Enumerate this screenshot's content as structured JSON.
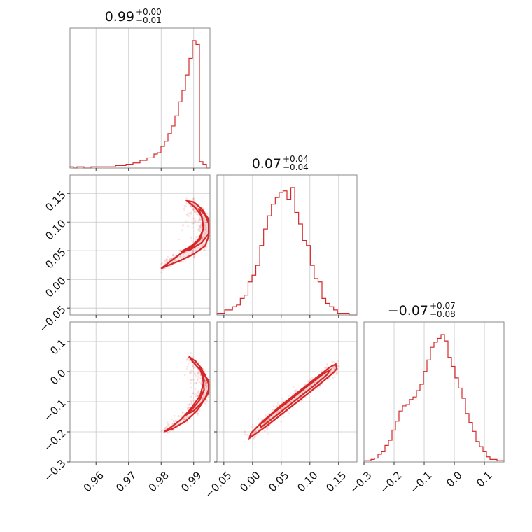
{
  "chart_data": {
    "type": "corner",
    "color": "#d62728",
    "parameters": [
      {
        "range": [
          0.952,
          0.995
        ],
        "ticks": [
          0.96,
          0.97,
          0.98,
          0.99
        ],
        "tick_labels": [
          "0.96",
          "0.97",
          "0.98",
          "0.99"
        ],
        "title": {
          "value": "0.99",
          "upper": "+0.00",
          "lower": "−0.01"
        }
      },
      {
        "range": [
          -0.062,
          0.182
        ],
        "ticks": [
          -0.05,
          0.0,
          0.05,
          0.1,
          0.15
        ],
        "tick_labels": [
          "−0.05",
          "0.00",
          "0.05",
          "0.10",
          "0.15"
        ],
        "title": {
          "value": "0.07",
          "upper": "+0.04",
          "lower": "−0.04"
        }
      },
      {
        "range": [
          -0.3,
          0.165
        ],
        "ticks": [
          -0.3,
          -0.2,
          -0.1,
          0.0,
          0.1
        ],
        "tick_labels": [
          "−0.3",
          "−0.2",
          "−0.1",
          "0.0",
          "0.1"
        ],
        "title": {
          "value": "−0.07",
          "upper": "+0.07",
          "lower": "−0.08"
        }
      }
    ],
    "histograms": [
      {
        "param": 0,
        "bin_range": [
          0.952,
          0.995
        ],
        "counts": [
          1,
          0,
          1,
          1,
          0,
          0,
          1,
          1,
          1,
          1,
          1,
          1,
          1,
          2,
          2,
          2,
          3,
          3,
          4,
          4,
          6,
          6,
          8,
          8,
          11,
          12,
          17,
          21,
          27,
          33,
          41,
          52,
          61,
          73,
          86,
          100,
          97,
          5,
          3,
          0
        ]
      },
      {
        "param": 1,
        "bin_range": [
          -0.062,
          0.182
        ],
        "counts": [
          1,
          1,
          3,
          3,
          5,
          6,
          10,
          12,
          20,
          24,
          30,
          42,
          52,
          60,
          67,
          71,
          74,
          75,
          70,
          77,
          62,
          55,
          45,
          42,
          30,
          22,
          20,
          10,
          7,
          5,
          3,
          1,
          1,
          1,
          0,
          0
        ]
      },
      {
        "param": 2,
        "bin_range": [
          -0.3,
          0.165
        ],
        "counts": [
          1,
          1,
          2,
          3,
          6,
          8,
          13,
          17,
          25,
          32,
          40,
          44,
          45,
          49,
          51,
          56,
          61,
          71,
          80,
          90,
          94,
          97,
          100,
          95,
          82,
          75,
          66,
          58,
          50,
          38,
          31,
          24,
          16,
          12,
          8,
          4,
          2,
          2,
          1,
          1
        ]
      }
    ],
    "pairs": [
      {
        "x_param": 0,
        "y_param": 1,
        "contours": [
          {
            "level": "outer",
            "path": [
              [
                0.9946,
                0.105
              ],
              [
                0.9925,
                0.123
              ],
              [
                0.99,
                0.135
              ],
              [
                0.988,
                0.137
              ],
              [
                0.9905,
                0.125
              ],
              [
                0.9925,
                0.11
              ],
              [
                0.993,
                0.09
              ],
              [
                0.992,
                0.07
              ],
              [
                0.9895,
                0.056
              ],
              [
                0.986,
                0.045
              ],
              [
                0.983,
                0.032
              ],
              [
                0.98,
                0.019
              ],
              [
                0.982,
                0.024
              ],
              [
                0.986,
                0.033
              ],
              [
                0.99,
                0.044
              ],
              [
                0.9935,
                0.058
              ],
              [
                0.9946,
                0.075
              ]
            ]
          },
          {
            "level": "inner",
            "path": [
              [
                0.9946,
                0.098
              ],
              [
                0.9935,
                0.113
              ],
              [
                0.9915,
                0.124
              ],
              [
                0.9925,
                0.108
              ],
              [
                0.993,
                0.088
              ],
              [
                0.9915,
                0.069
              ],
              [
                0.989,
                0.057
              ],
              [
                0.986,
                0.048
              ],
              [
                0.989,
                0.052
              ],
              [
                0.9925,
                0.064
              ],
              [
                0.9946,
                0.08
              ]
            ]
          }
        ]
      },
      {
        "x_param": 0,
        "y_param": 2,
        "contours": [
          {
            "level": "outer",
            "path": [
              [
                0.9946,
                -0.03
              ],
              [
                0.9925,
                0.0
              ],
              [
                0.99,
                0.03
              ],
              [
                0.9885,
                0.05
              ],
              [
                0.9905,
                0.035
              ],
              [
                0.9925,
                0.01
              ],
              [
                0.9932,
                -0.03
              ],
              [
                0.992,
                -0.08
              ],
              [
                0.989,
                -0.125
              ],
              [
                0.986,
                -0.16
              ],
              [
                0.983,
                -0.185
              ],
              [
                0.981,
                -0.199
              ],
              [
                0.9835,
                -0.19
              ],
              [
                0.9875,
                -0.165
              ],
              [
                0.991,
                -0.13
              ],
              [
                0.9935,
                -0.09
              ],
              [
                0.9946,
                -0.06
              ]
            ]
          },
          {
            "level": "inner",
            "path": [
              [
                0.9946,
                -0.04
              ],
              [
                0.9935,
                -0.01
              ],
              [
                0.9918,
                0.015
              ],
              [
                0.9928,
                -0.02
              ],
              [
                0.9932,
                -0.06
              ],
              [
                0.9918,
                -0.095
              ],
              [
                0.9895,
                -0.125
              ],
              [
                0.9875,
                -0.145
              ],
              [
                0.99,
                -0.13
              ],
              [
                0.9928,
                -0.1
              ],
              [
                0.9946,
                -0.07
              ]
            ]
          }
        ]
      },
      {
        "x_param": 1,
        "y_param": 2,
        "contours": [
          {
            "level": "outer",
            "path": [
              [
                -0.005,
                -0.22
              ],
              [
                0.025,
                -0.18
              ],
              [
                0.055,
                -0.135
              ],
              [
                0.085,
                -0.09
              ],
              [
                0.115,
                -0.045
              ],
              [
                0.14,
                -0.005
              ],
              [
                0.147,
                0.01
              ],
              [
                0.145,
                0.025
              ],
              [
                0.135,
                0.015
              ],
              [
                0.108,
                -0.025
              ],
              [
                0.078,
                -0.07
              ],
              [
                0.048,
                -0.115
              ],
              [
                0.018,
                -0.165
              ],
              [
                -0.003,
                -0.205
              ]
            ]
          },
          {
            "level": "inner",
            "path": [
              [
                0.015,
                -0.185
              ],
              [
                0.045,
                -0.14
              ],
              [
                0.075,
                -0.095
              ],
              [
                0.105,
                -0.05
              ],
              [
                0.13,
                -0.01
              ],
              [
                0.135,
                0.005
              ],
              [
                0.125,
                -0.005
              ],
              [
                0.098,
                -0.045
              ],
              [
                0.068,
                -0.09
              ],
              [
                0.038,
                -0.135
              ],
              [
                0.013,
                -0.175
              ]
            ]
          }
        ]
      }
    ]
  }
}
